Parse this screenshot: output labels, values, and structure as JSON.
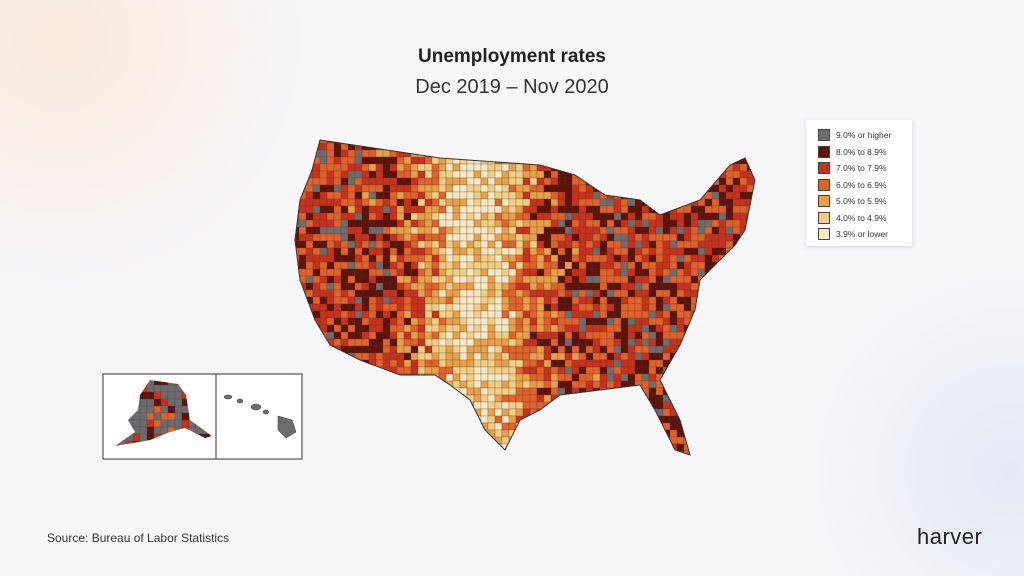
{
  "header": {
    "title": "Unemployment rates",
    "subtitle": "Dec 2019 – Nov 2020"
  },
  "legend": [
    {
      "label": "9.0% or higher",
      "color": "#6d6d70"
    },
    {
      "label": "8.0% to 8.9%",
      "color": "#5e1208"
    },
    {
      "label": "7.0% to 7.9%",
      "color": "#c8321c"
    },
    {
      "label": "6.0% to 6.9%",
      "color": "#e2622a"
    },
    {
      "label": "5.0% to 5.9%",
      "color": "#e9a048"
    },
    {
      "label": "4.0% to 4.9%",
      "color": "#f3cf86"
    },
    {
      "label": "3.9% or lower",
      "color": "#f8e8c4"
    }
  ],
  "source": "Source: Bureau of Labor Statistics",
  "brand": "harver"
}
